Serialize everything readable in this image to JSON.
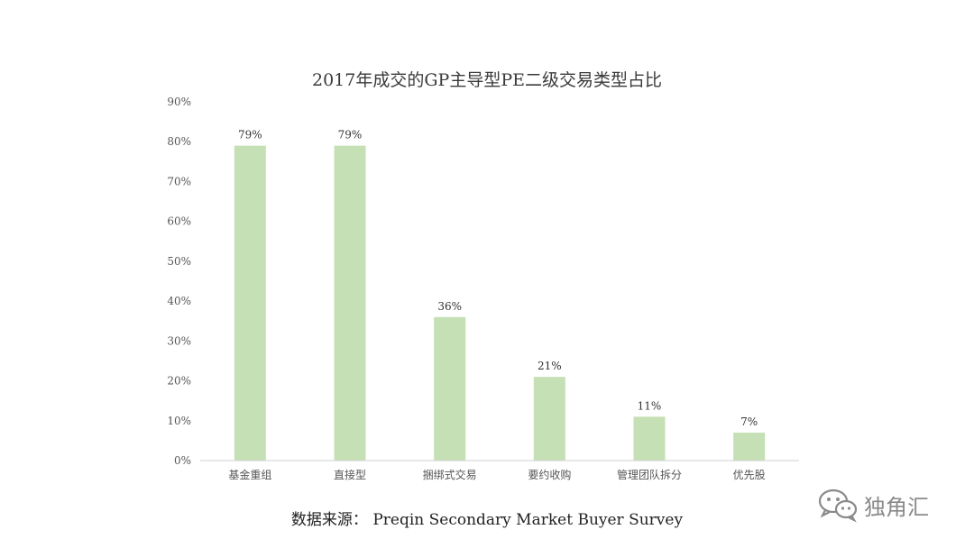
{
  "chart_data": {
    "type": "bar",
    "title": "2017年成交的GP主导型PE二级交易类型占比",
    "categories": [
      "基金重组",
      "直接型",
      "捆绑式交易",
      "要约收购",
      "管理团队拆分",
      "优先股"
    ],
    "values": [
      79,
      79,
      36,
      21,
      11,
      7
    ],
    "data_labels": [
      "79%",
      "79%",
      "36%",
      "21%",
      "11%",
      "7%"
    ],
    "ylim": [
      0,
      90
    ],
    "yticks": [
      "0%",
      "10%",
      "20%",
      "30%",
      "40%",
      "50%",
      "60%",
      "70%",
      "80%",
      "90%"
    ],
    "grid": false,
    "legend": "none",
    "bar_color": "#c5e0b4",
    "xlabel": "",
    "ylabel": ""
  },
  "source_text": "数据来源： Preqin Secondary Market Buyer Survey",
  "watermark": {
    "icon": "wechat-icon",
    "text": "独角汇"
  }
}
